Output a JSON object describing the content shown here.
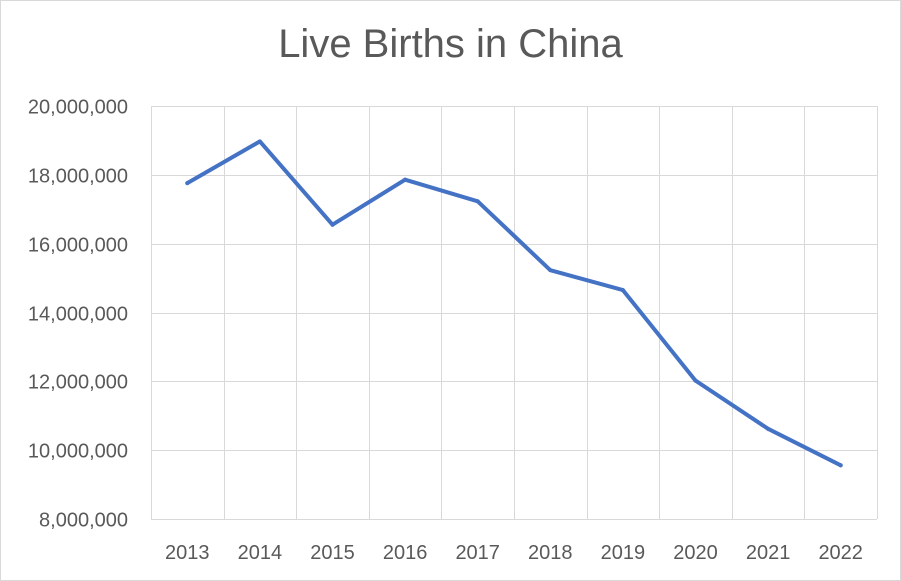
{
  "chart_data": {
    "type": "line",
    "title": "Live Births in China",
    "xlabel": "",
    "ylabel": "",
    "categories": [
      "2013",
      "2014",
      "2015",
      "2016",
      "2017",
      "2018",
      "2019",
      "2020",
      "2021",
      "2022"
    ],
    "series": [
      {
        "values": [
          17760000,
          18970000,
          16550000,
          17860000,
          17230000,
          15230000,
          14650000,
          12020000,
          10620000,
          9560000
        ],
        "color": "#4472c4"
      }
    ],
    "ylim": [
      8000000,
      20000000
    ],
    "yticks": [
      "8,000,000",
      "10,000,000",
      "12,000,000",
      "14,000,000",
      "16,000,000",
      "18,000,000",
      "20,000,000"
    ],
    "ytick_values": [
      8000000,
      10000000,
      12000000,
      14000000,
      16000000,
      18000000,
      20000000
    ],
    "grid": true,
    "legend": "none"
  }
}
